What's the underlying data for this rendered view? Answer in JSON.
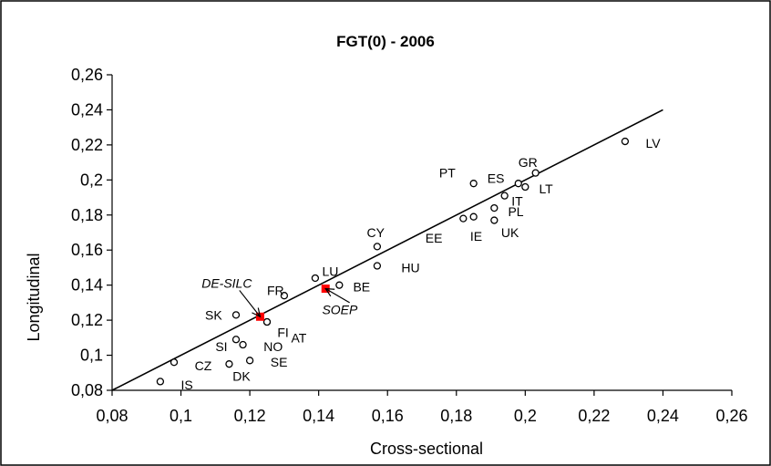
{
  "chart_data": {
    "type": "scatter",
    "title": "FGT(0) - 2006",
    "xlabel": "Cross-sectional",
    "ylabel": "Longitudinal",
    "xlim": [
      0.08,
      0.26
    ],
    "ylim": [
      0.08,
      0.26
    ],
    "x_ticks": [
      "0,08",
      "0,1",
      "0,12",
      "0,14",
      "0,16",
      "0,18",
      "0,2",
      "0,22",
      "0,24",
      "0,26"
    ],
    "y_ticks": [
      "0,08",
      "0,1",
      "0,12",
      "0,14",
      "0,16",
      "0,18",
      "0,2",
      "0,22",
      "0,24",
      "0,26"
    ],
    "grid": false,
    "reference_line": {
      "from": [
        0.08,
        0.08
      ],
      "to": [
        0.24,
        0.24
      ]
    },
    "colors": {
      "country_marker": "#000000",
      "survey_marker": "#ff0000",
      "fi_fill": "#8a8ab8"
    },
    "points": [
      {
        "label": "LV",
        "x": 0.229,
        "y": 0.222,
        "lx": 0.235,
        "ly": 0.221
      },
      {
        "label": "GR",
        "x": 0.203,
        "y": 0.204,
        "lx": 0.198,
        "ly": 0.21
      },
      {
        "label": "ES",
        "x": 0.198,
        "y": 0.198,
        "lx": 0.189,
        "ly": 0.201
      },
      {
        "label": "LT",
        "x": 0.2,
        "y": 0.196,
        "lx": 0.204,
        "ly": 0.195
      },
      {
        "label": "PT",
        "x": 0.185,
        "y": 0.198,
        "lx": 0.175,
        "ly": 0.204
      },
      {
        "label": "IT",
        "x": 0.194,
        "y": 0.191,
        "lx": 0.196,
        "ly": 0.188
      },
      {
        "label": "PL",
        "x": 0.191,
        "y": 0.184,
        "lx": 0.195,
        "ly": 0.182
      },
      {
        "label": "UK",
        "x": 0.191,
        "y": 0.177,
        "lx": 0.193,
        "ly": 0.17
      },
      {
        "label": "IE",
        "x": 0.185,
        "y": 0.179,
        "lx": 0.184,
        "ly": 0.168
      },
      {
        "label": "EE",
        "x": 0.182,
        "y": 0.178,
        "lx": 0.171,
        "ly": 0.167
      },
      {
        "label": "CY",
        "x": 0.157,
        "y": 0.162,
        "lx": 0.154,
        "ly": 0.17
      },
      {
        "label": "HU",
        "x": 0.157,
        "y": 0.151,
        "lx": 0.164,
        "ly": 0.15
      },
      {
        "label": "LU",
        "x": 0.139,
        "y": 0.144,
        "lx": 0.141,
        "ly": 0.148
      },
      {
        "label": "BE",
        "x": 0.146,
        "y": 0.14,
        "lx": 0.15,
        "ly": 0.139
      },
      {
        "label": "FR",
        "x": 0.13,
        "y": 0.134,
        "lx": 0.125,
        "ly": 0.137
      },
      {
        "label": "SK",
        "x": 0.116,
        "y": 0.123,
        "lx": 0.107,
        "ly": 0.123
      },
      {
        "label": "FI",
        "x": 0.125,
        "y": 0.119,
        "lx": 0.128,
        "ly": 0.113
      },
      {
        "label": "AT",
        "x": 0.125,
        "y": 0.119,
        "lx": 0.132,
        "ly": 0.11
      },
      {
        "label": "SI",
        "x": 0.116,
        "y": 0.109,
        "lx": 0.11,
        "ly": 0.105
      },
      {
        "label": "NO",
        "x": 0.118,
        "y": 0.106,
        "lx": 0.124,
        "ly": 0.105
      },
      {
        "label": "SE",
        "x": 0.12,
        "y": 0.097,
        "lx": 0.126,
        "ly": 0.096
      },
      {
        "label": "DK",
        "x": 0.114,
        "y": 0.095,
        "lx": 0.115,
        "ly": 0.088
      },
      {
        "label": "CZ",
        "x": 0.098,
        "y": 0.096,
        "lx": 0.104,
        "ly": 0.094
      },
      {
        "label": "IS",
        "x": 0.094,
        "y": 0.085,
        "lx": 0.1,
        "ly": 0.083
      }
    ],
    "survey_points": [
      {
        "label": "DE-SILC",
        "x": 0.123,
        "y": 0.122,
        "lx": 0.106,
        "ly": 0.141,
        "ax": 0.117,
        "ay": 0.137
      },
      {
        "label": "SOEP",
        "x": 0.142,
        "y": 0.138,
        "lx": 0.141,
        "ly": 0.126,
        "ax": 0.149,
        "ay": 0.13
      }
    ]
  }
}
